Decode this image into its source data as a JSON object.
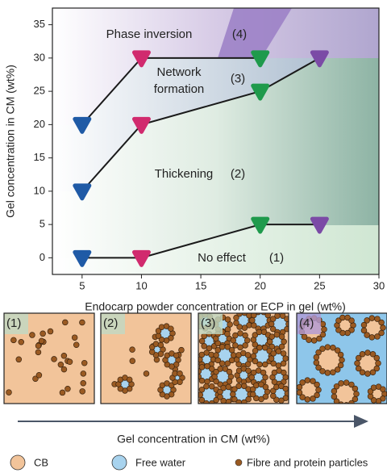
{
  "chart_data": {
    "type": "line",
    "x_label": "Endocarp powder concentration or ECP in gel (wt%)",
    "y_label": "Gel concentration in CM (wt%)",
    "x": [
      5,
      10,
      20,
      25
    ],
    "marker_colors": [
      "#1f5aa6",
      "#d12a6e",
      "#1f9a4c",
      "#7b4aa6"
    ],
    "line_color": "#1a1a1a",
    "series": [
      {
        "values": [
          20,
          30,
          30,
          null
        ]
      },
      {
        "values": [
          10,
          20,
          25,
          30
        ]
      },
      {
        "values": [
          0,
          0,
          5,
          5
        ]
      }
    ],
    "xlim": [
      2.5,
      30
    ],
    "ylim": [
      -2.5,
      37.5
    ],
    "xticks": [
      5,
      10,
      15,
      20,
      25,
      30
    ],
    "yticks": [
      0,
      5,
      10,
      15,
      20,
      25,
      30,
      35
    ],
    "annotations": [
      "Phase inversion",
      "(4)",
      "Network",
      "formation",
      "(3)",
      "Thickening",
      "(2)",
      "No effect",
      "(1)"
    ]
  },
  "schematic": {
    "panels": [
      "(1)",
      "(2)",
      "(3)",
      "(4)"
    ],
    "arrow_label": "Gel concentration in CM (wt%)",
    "legend": [
      "CB",
      "Free water",
      "Fibre and protein particles"
    ]
  }
}
